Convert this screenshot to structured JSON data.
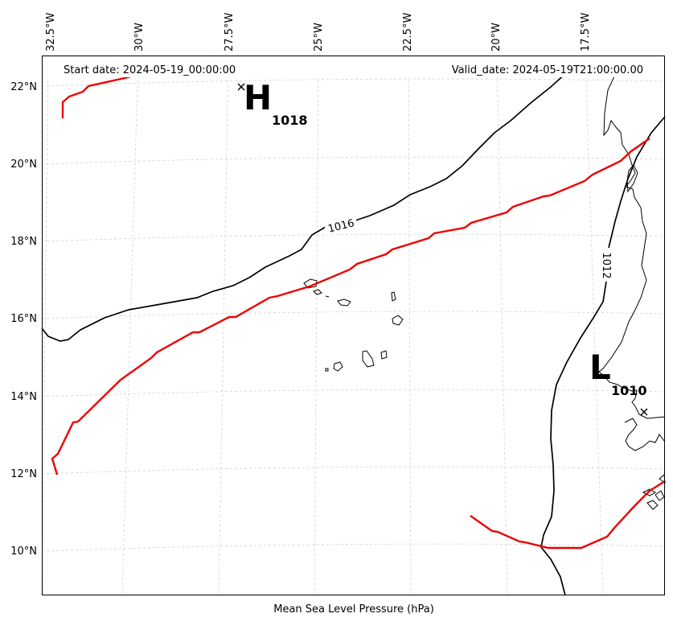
{
  "header": {
    "start_date": "Start date: 2024-05-19_00:00:00",
    "valid_date": "Valid_date: 2024-05-19T21:00:00.00"
  },
  "footer": {
    "title": "Mean Sea Level Pressure (hPa)"
  },
  "axes": {
    "lon_ticks": [
      "32.5°W",
      "30°W",
      "27.5°W",
      "25°W",
      "22.5°W",
      "20°W",
      "17.5°W"
    ],
    "lat_ticks": [
      "22°N",
      "20°N",
      "18°N",
      "16°N",
      "14°N",
      "12°N",
      "10°N"
    ]
  },
  "pressure_centers": {
    "high": {
      "letter": "H",
      "value": "1018"
    },
    "low": {
      "letter": "L",
      "value": "1010"
    }
  },
  "contours": {
    "label_1016": "1016",
    "label_1012": "1012"
  },
  "colors": {
    "isobar": "#000000",
    "highlight_isobar": "#ee0000",
    "grid": "#cccccc"
  }
}
